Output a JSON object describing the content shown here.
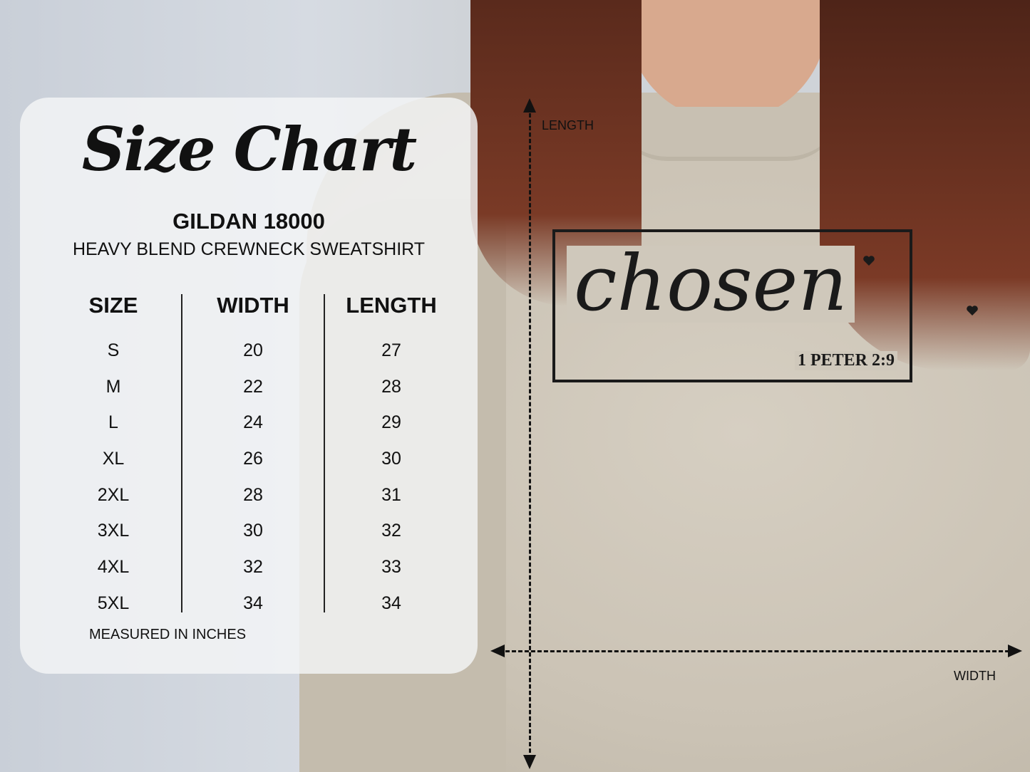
{
  "title": "Size Chart",
  "brand": "GILDAN 18000",
  "product": "HEAVY BLEND CREWNECK SWEATSHIRT",
  "table": {
    "headers": [
      "SIZE",
      "WIDTH",
      "LENGTH"
    ],
    "sizes": [
      "S",
      "M",
      "L",
      "XL",
      "2XL",
      "3XL",
      "4XL",
      "5XL"
    ],
    "widths": [
      "20",
      "22",
      "24",
      "26",
      "28",
      "30",
      "32",
      "34"
    ],
    "lengths": [
      "27",
      "28",
      "29",
      "30",
      "31",
      "32",
      "33",
      "34"
    ]
  },
  "note": "MEASURED IN INCHES",
  "design": {
    "word": "chosen",
    "verse": "1 PETER 2:9"
  },
  "measure_labels": {
    "length": "LENGTH",
    "width": "WIDTH"
  },
  "colors": {
    "shirt": "#cbc3b5",
    "hair": "#6a3222",
    "panel": "#f4f5f7"
  }
}
